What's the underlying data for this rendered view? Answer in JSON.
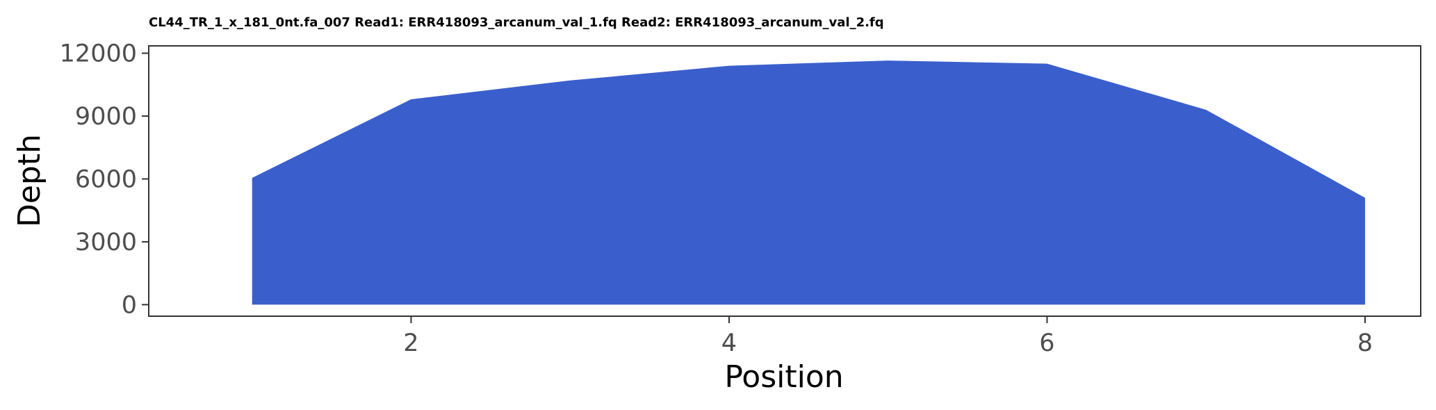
{
  "chart_data": {
    "type": "area",
    "title": "CL44_TR_1_x_181_0nt.fa_007 Read1: ERR418093_arcanum_val_1.fq Read2: ERR418093_arcanum_val_2.fq",
    "xlabel": "Position",
    "ylabel": "Depth",
    "x": [
      1,
      2,
      3,
      4,
      5,
      6,
      7,
      8
    ],
    "series": [
      {
        "values": [
          6050,
          9800,
          10700,
          11400,
          11650,
          11500,
          9300,
          5100
        ]
      }
    ],
    "xlim": [
      0.35,
      8.35
    ],
    "ylim": [
      -550,
      12350
    ],
    "x_ticks": [
      2,
      4,
      6,
      8
    ],
    "x_tick_labels": [
      "2",
      "4",
      "6",
      "8"
    ],
    "y_ticks": [
      0,
      3000,
      6000,
      9000,
      12000
    ],
    "y_tick_labels": [
      "0",
      "3000",
      "6000",
      "9000",
      "12000"
    ],
    "grid": false,
    "legend": "none",
    "fill_color": "#3a5fcd",
    "panel_border_color": "#333333"
  }
}
